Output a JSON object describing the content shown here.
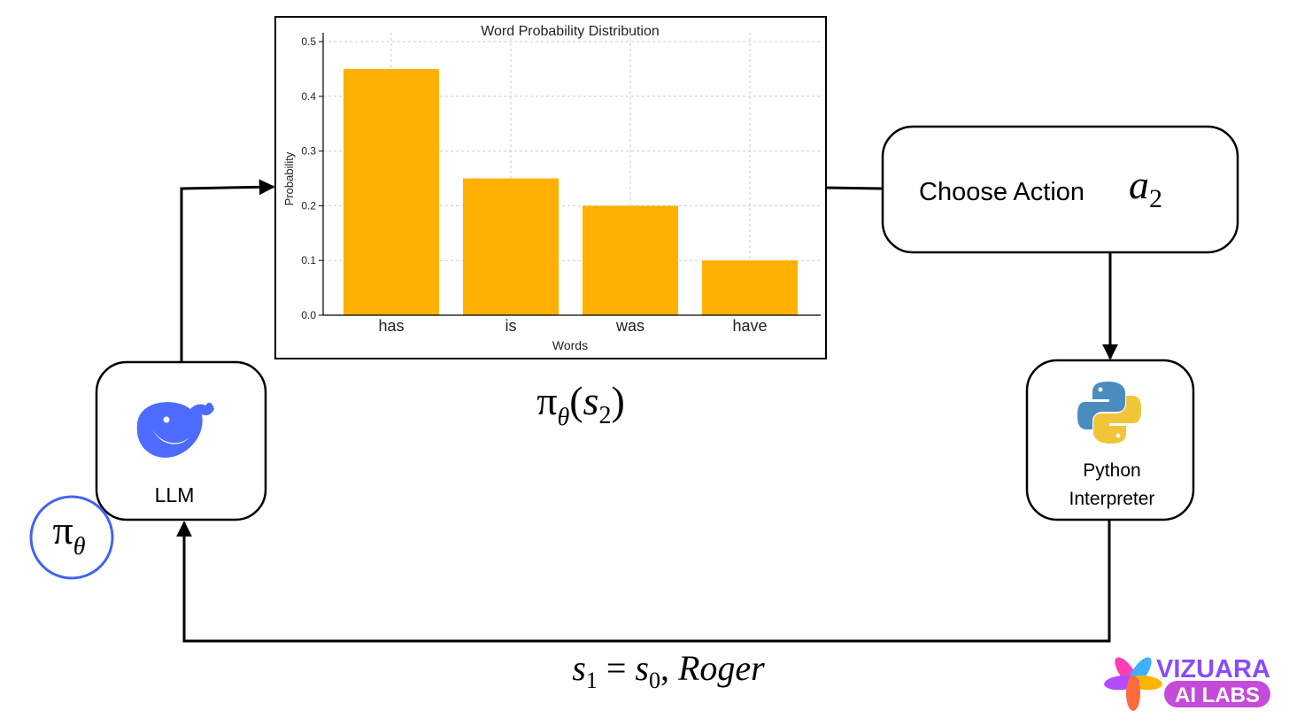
{
  "chart_data": {
    "type": "bar",
    "title": "Word Probability Distribution",
    "x_label": "Words",
    "y_label": "Probability",
    "categories": [
      "has",
      "is",
      "was",
      "have"
    ],
    "values": [
      0.45,
      0.25,
      0.2,
      0.1
    ],
    "color": "#ffb000",
    "ylim": [
      0,
      0.5
    ],
    "yticks": [
      {
        "value": 0,
        "label": "0.0"
      },
      0.1,
      0.2,
      0.3,
      0.4,
      0.5
    ],
    "grid": true
  },
  "llm": {
    "label": "LLM"
  },
  "python": {
    "label": [
      "Python",
      "Interpreter"
    ]
  },
  "action": {
    "label": "Choose Action",
    "symbol": [
      "a",
      "2"
    ]
  },
  "policy": [
    "π",
    "θ"
  ],
  "policy_output": [
    "π",
    "θ",
    "(",
    "s",
    "2",
    ")"
  ],
  "transition": [
    "s",
    "1",
    " = ",
    "s",
    "0",
    ", ",
    "Roger"
  ],
  "logo": {
    "top": "VIZUARA",
    "bottom": "AI LABS"
  }
}
